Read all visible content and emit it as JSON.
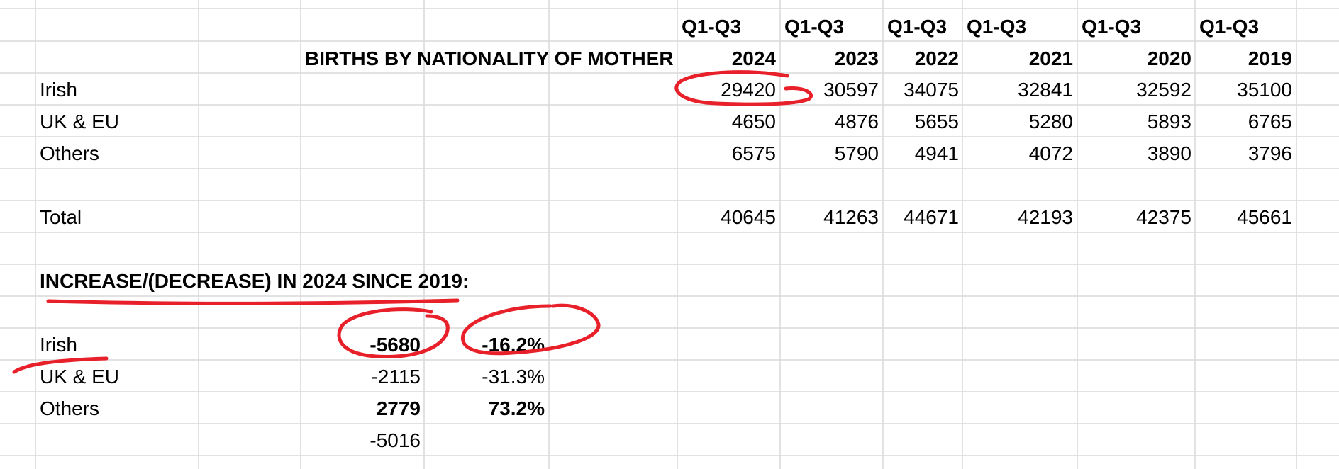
{
  "sheet": {
    "title": "BIRTHS BY NATIONALITY OF MOTHER",
    "period_label": "Q1-Q3",
    "years": [
      "2024",
      "2023",
      "2022",
      "2021",
      "2020",
      "2019"
    ],
    "rows": [
      {
        "label": "Irish",
        "values": [
          "29420",
          "30597",
          "34075",
          "32841",
          "32592",
          "35100"
        ]
      },
      {
        "label": "UK & EU",
        "values": [
          "4650",
          "4876",
          "5655",
          "5280",
          "5893",
          "6765"
        ]
      },
      {
        "label": "Others",
        "values": [
          "6575",
          "5790",
          "4941",
          "4072",
          "3890",
          "3796"
        ]
      }
    ],
    "total": {
      "label": "Total",
      "values": [
        "40645",
        "41263",
        "44671",
        "42193",
        "42375",
        "45661"
      ]
    },
    "change_heading": "INCREASE/(DECREASE) IN 2024 SINCE 2019:",
    "changes": [
      {
        "label": "Irish",
        "diff": "-5680",
        "pct": "-16.2%"
      },
      {
        "label": "UK & EU",
        "diff": "-2115",
        "pct": "-31.3%"
      },
      {
        "label": "Others",
        "diff": "2779",
        "pct": "73.2%"
      }
    ],
    "change_total": "-5016",
    "annotation_color": "#e8202a"
  }
}
